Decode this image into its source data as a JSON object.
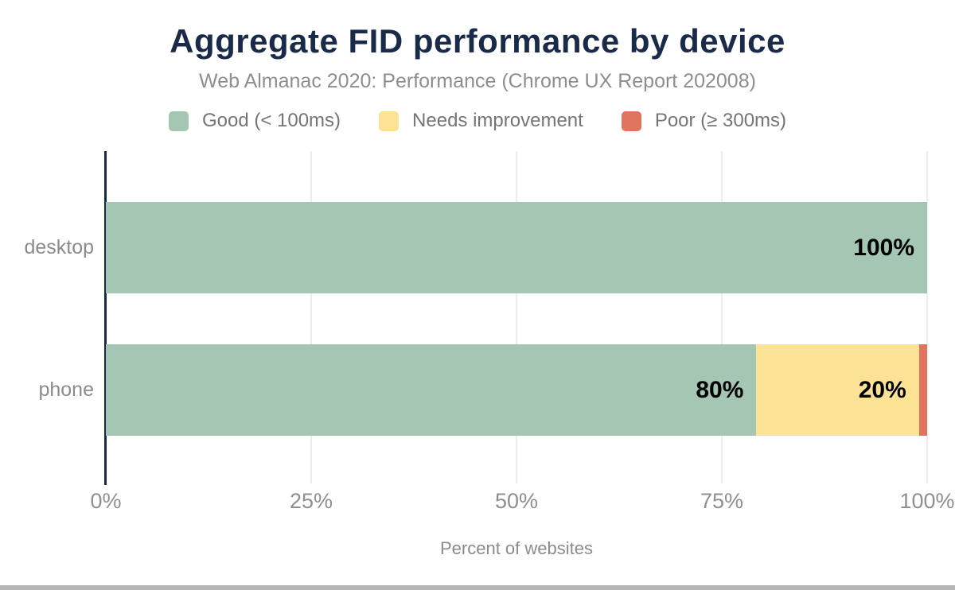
{
  "chart_data": {
    "type": "bar",
    "orientation": "horizontal",
    "stacked": true,
    "title": "Aggregate FID performance by device",
    "subtitle": "Web Almanac 2020: Performance (Chrome UX Report 202008)",
    "xlabel": "Percent of websites",
    "categories": [
      "desktop",
      "phone"
    ],
    "series": [
      {
        "name": "Good (< 100ms)",
        "color": "#a5c6b2",
        "values": [
          100,
          80
        ]
      },
      {
        "name": "Needs improvement",
        "color": "#fbe295",
        "values": [
          0,
          20
        ]
      },
      {
        "name": "Poor (≥ 300ms)",
        "color": "#e0745f",
        "values": [
          0,
          1
        ]
      }
    ],
    "data_labels": [
      [
        "100%",
        "",
        ""
      ],
      [
        "80%",
        "20%",
        ""
      ]
    ],
    "xlim": [
      0,
      100
    ],
    "x_ticks": [
      0,
      25,
      50,
      75,
      100
    ],
    "x_tick_labels": [
      "0%",
      "25%",
      "50%",
      "75%",
      "100%"
    ],
    "grid": "vertical",
    "legend_position": "top",
    "axis_color": "#15294a",
    "gridline_color": "#ededed"
  }
}
